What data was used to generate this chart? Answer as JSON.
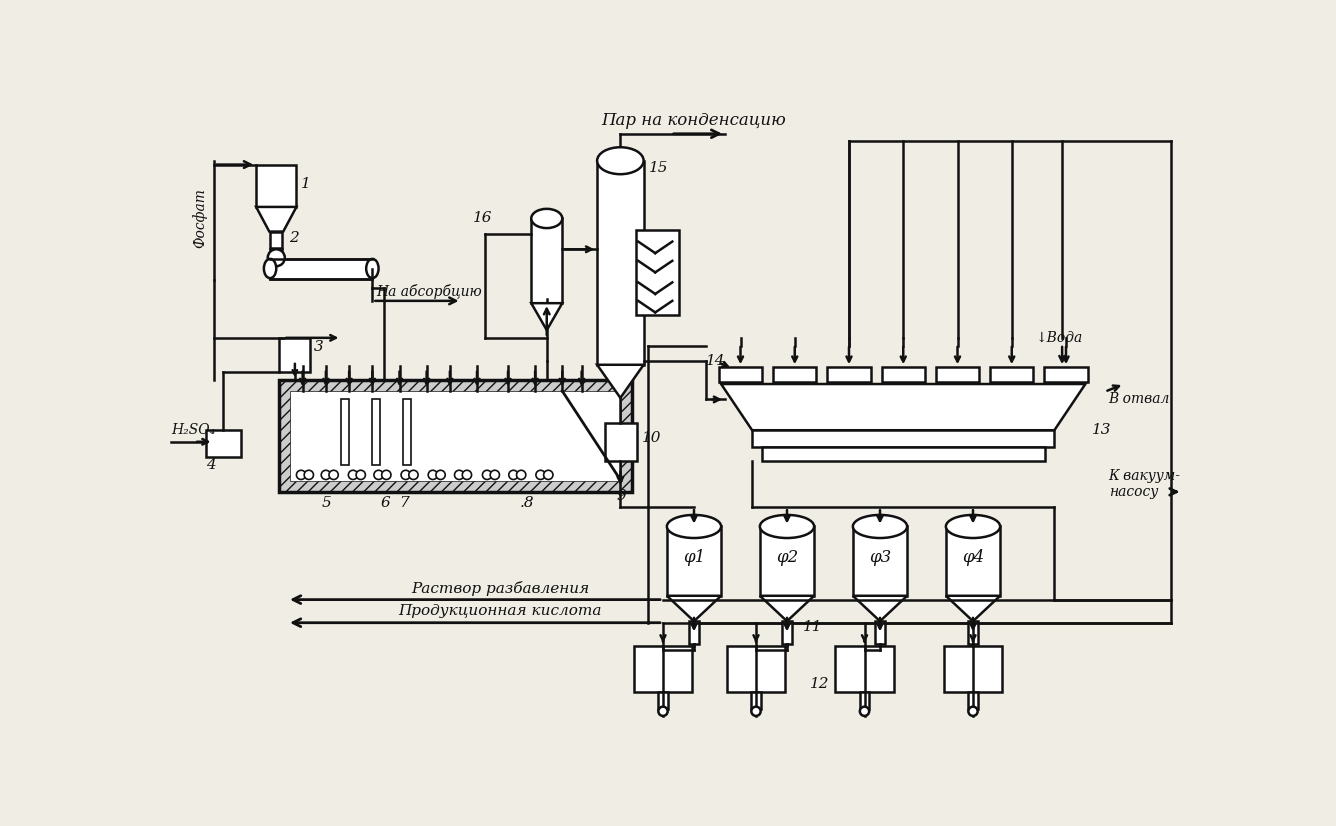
{
  "bg_color": "#f0ede5",
  "line_color": "#111111",
  "fosfat": "Фосфат",
  "na_absorbciyu": "На абсорбцию",
  "par_na_kondensaciyu": "Пар на конденсацию",
  "voda": "Вода",
  "v_otval": "В отвал",
  "k_vakuum_nasosu": "К вакуум-\nнасосу",
  "rastvor_razbavleniya": "Раствор разбавления",
  "produkcionnaya_kislota": "Продукционная кислота",
  "h2so4": "H₂SO₄",
  "filter_labels": [
    "φ1",
    "φ2",
    "φ3",
    "φ4"
  ]
}
